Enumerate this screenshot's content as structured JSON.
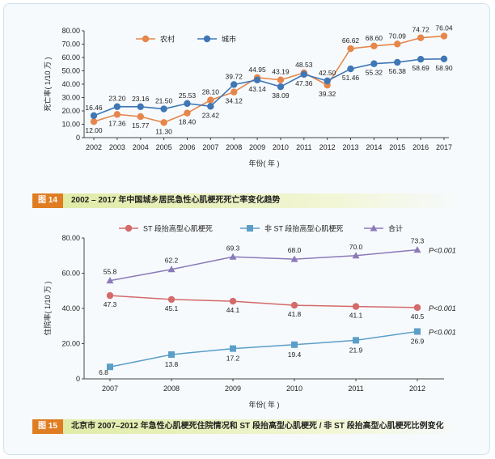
{
  "colors": {
    "rural": "#e6864a",
    "urban": "#3f77b5",
    "stemi": "#d46a6a",
    "nstemi": "#5b9ec8",
    "total": "#8b7ab8",
    "caption_tag": "#e07d22"
  },
  "figure14": {
    "tag": "图 14",
    "caption": "2002 – 2017 年中国城乡居民急性心肌梗死死亡率变化趋势"
  },
  "figure15": {
    "tag": "图 15",
    "caption": "北京市 2007–2012 年急性心肌梗死住院情况和 ST 段抬高型心肌梗死 / 非 ST 段抬高型心肌梗死比例变化"
  },
  "chart_data": [
    {
      "type": "line",
      "title": "",
      "xlabel": "年份( 年 )",
      "ylabel": "死亡率( 1/10 万 )",
      "ylim": [
        0,
        80
      ],
      "yticks": [
        "0",
        "10.00",
        "20.00",
        "30.00",
        "40.00",
        "50.00",
        "60.00",
        "70.00",
        "80.00"
      ],
      "x": [
        "2002",
        "2003",
        "2004",
        "2005",
        "2006",
        "2007",
        "2008",
        "2009",
        "2010",
        "2011",
        "2012",
        "2013",
        "2014",
        "2015",
        "2016",
        "2017"
      ],
      "legend_position": "top",
      "grid": false,
      "series": [
        {
          "name": "农村",
          "color": "#e6864a",
          "marker": "circle",
          "values": [
            12.0,
            17.36,
            15.77,
            11.3,
            18.4,
            28.1,
            34.12,
            44.95,
            43.19,
            48.53,
            39.32,
            66.62,
            68.6,
            70.09,
            74.72,
            76.04
          ]
        },
        {
          "name": "城市",
          "color": "#3f77b5",
          "marker": "circle",
          "values": [
            16.46,
            23.2,
            23.16,
            21.5,
            25.53,
            23.42,
            39.72,
            43.14,
            38.09,
            47.36,
            42.5,
            51.46,
            55.32,
            56.38,
            58.69,
            58.9
          ]
        }
      ],
      "data_labels": [
        "12.00",
        "17.36",
        "15.77",
        "11.30",
        "18.40",
        "28.10",
        "34.12",
        "44.95",
        "43.19",
        "48.53",
        "39.32",
        "66.62",
        "68.60",
        "70.09",
        "74.72",
        "76.04",
        "16.46",
        "23.20",
        "23.16",
        "21.50",
        "25.53",
        "23.42",
        "39.72",
        "43.14",
        "38.09",
        "47.36",
        "42.50",
        "51.46",
        "55.32",
        "56.38",
        "58.69",
        "58.90"
      ]
    },
    {
      "type": "line",
      "title": "",
      "xlabel": "年份( 年 )",
      "ylabel": "住院率( 1/10 万 )",
      "ylim": [
        0,
        80
      ],
      "yticks": [
        "0",
        "20.00",
        "40.00",
        "60.00",
        "80.00"
      ],
      "x": [
        "2007",
        "2008",
        "2009",
        "2010",
        "2011",
        "2012"
      ],
      "legend_position": "top",
      "grid": false,
      "series": [
        {
          "name": "ST 段抬高型心肌梗死",
          "color": "#d46a6a",
          "marker": "circle",
          "values": [
            47.3,
            45.1,
            44.1,
            41.8,
            41.1,
            40.5
          ],
          "p_label": "P<0.001"
        },
        {
          "name": "非 ST 段抬高型心肌梗死",
          "color": "#5b9ec8",
          "marker": "square",
          "values": [
            6.8,
            13.8,
            17.2,
            19.4,
            21.9,
            26.9
          ],
          "p_label": "P<0.001"
        },
        {
          "name": "合计",
          "color": "#8b7ab8",
          "marker": "triangle",
          "values": [
            55.8,
            62.2,
            69.3,
            68.0,
            70.0,
            73.3
          ],
          "p_label": "P<0.001"
        }
      ],
      "data_labels": [
        "47.3",
        "45.1",
        "44.1",
        "41.8",
        "41.1",
        "40.5",
        "6.8",
        "13.8",
        "17.2",
        "19.4",
        "21.9",
        "26.9",
        "55.8",
        "62.2",
        "69.3",
        "68.0",
        "70.0",
        "73.3"
      ]
    }
  ]
}
